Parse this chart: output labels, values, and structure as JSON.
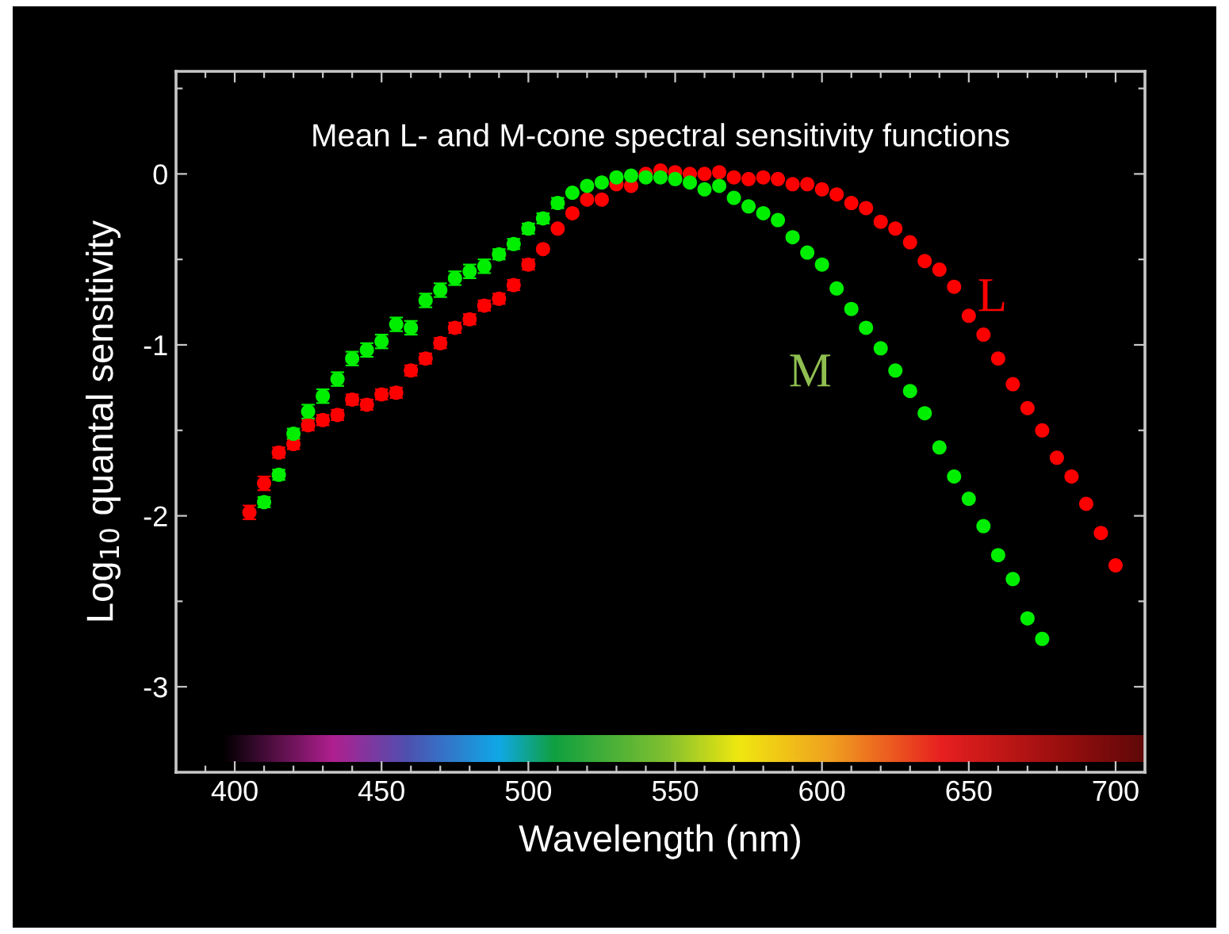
{
  "chart_data": {
    "type": "scatter",
    "title": "Mean L- and M-cone spectral sensitivity functions",
    "xlabel": "Wavelength (nm)",
    "ylabel": "Log$_{10}$ quantal sensitivity",
    "xlim": [
      380,
      710
    ],
    "ylim": [
      -3.5,
      0.6
    ],
    "xticks": [
      {
        "value": 390,
        "label": null
      },
      400,
      {
        "value": 410,
        "label": null
      },
      {
        "value": 420,
        "label": null
      },
      {
        "value": 430,
        "label": null
      },
      {
        "value": 440,
        "label": null
      },
      450,
      {
        "value": 460,
        "label": null
      },
      {
        "value": 470,
        "label": null
      },
      {
        "value": 480,
        "label": null
      },
      {
        "value": 490,
        "label": null
      },
      500,
      {
        "value": 510,
        "label": null
      },
      {
        "value": 520,
        "label": null
      },
      {
        "value": 530,
        "label": null
      },
      {
        "value": 540,
        "label": null
      },
      550,
      {
        "value": 560,
        "label": null
      },
      {
        "value": 570,
        "label": null
      },
      {
        "value": 580,
        "label": null
      },
      {
        "value": 590,
        "label": null
      },
      600,
      {
        "value": 610,
        "label": null
      },
      {
        "value": 620,
        "label": null
      },
      {
        "value": 630,
        "label": null
      },
      {
        "value": 640,
        "label": null
      },
      650,
      {
        "value": 660,
        "label": null
      },
      {
        "value": 670,
        "label": null
      },
      {
        "value": 680,
        "label": null
      },
      {
        "value": 690,
        "label": null
      },
      700
    ],
    "yticks": [
      -3,
      {
        "value": -2.5,
        "label": null
      },
      -2,
      {
        "value": -1.5,
        "label": null
      },
      -1,
      {
        "value": -0.5,
        "label": null
      },
      0,
      {
        "value": 0.5,
        "label": null
      }
    ],
    "grid": false,
    "legend": false,
    "marker": "circle",
    "series": [
      {
        "name": "L",
        "color": "#ff0000",
        "x": [
          405,
          410,
          415,
          420,
          425,
          430,
          435,
          440,
          445,
          450,
          455,
          460,
          465,
          470,
          475,
          480,
          485,
          490,
          495,
          500,
          505,
          510,
          515,
          520,
          525,
          530,
          535,
          540,
          545,
          550,
          555,
          560,
          565,
          570,
          575,
          580,
          585,
          590,
          595,
          600,
          605,
          610,
          615,
          620,
          625,
          630,
          635,
          640,
          645,
          650,
          655,
          660,
          665,
          670,
          675,
          680,
          685,
          690,
          695,
          700
        ],
        "values": [
          -1.98,
          -1.81,
          -1.63,
          -1.58,
          -1.47,
          -1.44,
          -1.41,
          -1.32,
          -1.35,
          -1.29,
          -1.28,
          -1.15,
          -1.08,
          -0.99,
          -0.9,
          -0.85,
          -0.77,
          -0.73,
          -0.65,
          -0.53,
          -0.44,
          -0.32,
          -0.23,
          -0.15,
          -0.15,
          -0.06,
          -0.07,
          0.0,
          0.02,
          0.01,
          0.0,
          0.0,
          0.01,
          -0.02,
          -0.03,
          -0.02,
          -0.03,
          -0.06,
          -0.06,
          -0.09,
          -0.12,
          -0.17,
          -0.2,
          -0.28,
          -0.32,
          -0.4,
          -0.51,
          -0.56,
          -0.66,
          -0.83,
          -0.94,
          -1.08,
          -1.23,
          -1.37,
          -1.5,
          -1.66,
          -1.77,
          -1.93,
          -2.1,
          -2.29
        ],
        "errors": [
          0.04,
          0.04,
          0.03,
          0.03,
          0.03,
          0.03,
          0.03,
          0.03,
          0.03,
          0.03,
          0.03,
          0.03,
          0.03,
          0.03,
          0.03,
          0.03,
          0.03,
          0.03,
          0.03,
          0.03,
          null,
          null,
          null,
          null,
          null,
          null,
          null,
          null,
          null,
          null,
          null,
          null,
          null,
          null,
          null,
          null,
          null,
          null,
          null,
          null,
          null,
          null,
          null,
          null,
          null,
          null,
          null,
          null,
          null,
          null,
          null,
          null,
          null,
          null,
          null,
          null,
          null,
          null,
          null,
          null
        ]
      },
      {
        "name": "M",
        "color": "#00ee00",
        "x": [
          410,
          415,
          420,
          425,
          430,
          435,
          440,
          445,
          450,
          455,
          460,
          465,
          470,
          475,
          480,
          485,
          490,
          495,
          500,
          505,
          510,
          515,
          520,
          525,
          530,
          535,
          540,
          545,
          550,
          555,
          560,
          565,
          570,
          575,
          580,
          585,
          590,
          595,
          600,
          605,
          610,
          615,
          620,
          625,
          630,
          635,
          640,
          645,
          650,
          655,
          660,
          665,
          670,
          675
        ],
        "values": [
          -1.92,
          -1.76,
          -1.52,
          -1.39,
          -1.3,
          -1.2,
          -1.08,
          -1.03,
          -0.98,
          -0.88,
          -0.9,
          -0.74,
          -0.68,
          -0.61,
          -0.57,
          -0.54,
          -0.47,
          -0.41,
          -0.32,
          -0.26,
          -0.17,
          -0.11,
          -0.07,
          -0.05,
          -0.02,
          -0.01,
          -0.02,
          -0.02,
          -0.03,
          -0.05,
          -0.09,
          -0.07,
          -0.14,
          -0.19,
          -0.23,
          -0.27,
          -0.37,
          -0.46,
          -0.53,
          -0.67,
          -0.79,
          -0.9,
          -1.02,
          -1.15,
          -1.27,
          -1.4,
          -1.6,
          -1.77,
          -1.9,
          -2.06,
          -2.23,
          -2.37,
          -2.6,
          -2.72
        ],
        "errors": [
          0.03,
          0.03,
          0.03,
          0.04,
          0.04,
          0.04,
          0.04,
          0.04,
          0.04,
          0.04,
          0.04,
          0.04,
          0.04,
          0.04,
          0.04,
          0.04,
          0.03,
          0.03,
          0.03,
          0.03,
          0.03,
          null,
          null,
          null,
          null,
          null,
          null,
          null,
          null,
          null,
          null,
          null,
          null,
          null,
          null,
          null,
          null,
          null,
          null,
          null,
          null,
          null,
          null,
          null,
          null,
          null,
          null,
          null,
          null,
          null,
          null,
          null,
          null,
          null
        ]
      }
    ]
  }
}
